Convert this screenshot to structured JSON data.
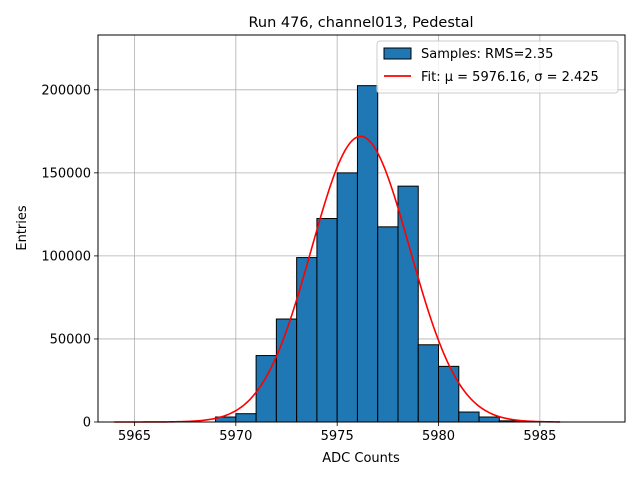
{
  "chart_data": {
    "type": "bar",
    "title": "Run 476, channel013, Pedestal",
    "xlabel": "ADC Counts",
    "ylabel": "Entries",
    "xlim": [
      5963.2,
      5989.2
    ],
    "ylim": [
      0,
      233000
    ],
    "xticks": [
      5965,
      5970,
      5975,
      5980,
      5985
    ],
    "yticks": [
      0,
      50000,
      100000,
      150000,
      200000
    ],
    "grid": true,
    "legend_position": "top-right",
    "histogram": {
      "name": "Samples: RMS=2.35",
      "color": "#1f77b4",
      "bins": [
        {
          "x0": 5969,
          "x1": 5970,
          "value": 3000
        },
        {
          "x0": 5970,
          "x1": 5971,
          "value": 5000
        },
        {
          "x0": 5971,
          "x1": 5972,
          "value": 40000
        },
        {
          "x0": 5972,
          "x1": 5973,
          "value": 62000
        },
        {
          "x0": 5973,
          "x1": 5974,
          "value": 99000
        },
        {
          "x0": 5974,
          "x1": 5975,
          "value": 122500
        },
        {
          "x0": 5975,
          "x1": 5976,
          "value": 150000
        },
        {
          "x0": 5976,
          "x1": 5977,
          "value": 202500
        },
        {
          "x0": 5977,
          "x1": 5978,
          "value": 117500
        },
        {
          "x0": 5978,
          "x1": 5979,
          "value": 142000
        },
        {
          "x0": 5979,
          "x1": 5980,
          "value": 46500
        },
        {
          "x0": 5980,
          "x1": 5981,
          "value": 33500
        },
        {
          "x0": 5981,
          "x1": 5982,
          "value": 6000
        },
        {
          "x0": 5982,
          "x1": 5983,
          "value": 3000
        },
        {
          "x0": 5983,
          "x1": 5984,
          "value": 700
        },
        {
          "x0": 5984,
          "x1": 5985,
          "value": 200
        }
      ]
    },
    "fit": {
      "name": "Fit: μ = 5976.16, σ = 2.425",
      "color": "#ff0000",
      "mu": 5976.16,
      "sigma": 2.425,
      "amplitude": 172000,
      "x_range": [
        5964,
        5986
      ]
    }
  }
}
